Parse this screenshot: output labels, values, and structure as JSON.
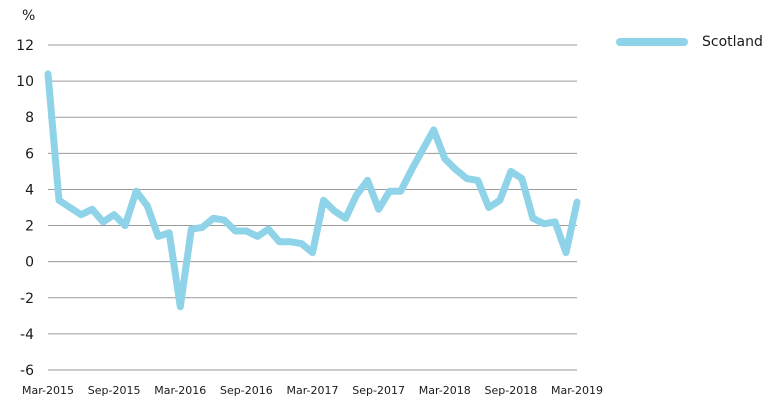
{
  "chart_data": {
    "type": "line",
    "unit": "%",
    "ylim": [
      -6,
      12
    ],
    "yticks": [
      "12",
      "10",
      "8",
      "6",
      "4",
      "2",
      "0",
      "-2",
      "-4",
      "-6"
    ],
    "ytick_values": [
      12,
      10,
      8,
      6,
      4,
      2,
      0,
      -2,
      -4,
      -6
    ],
    "xtick_labels": [
      "Mar-2015",
      "Sep-2015",
      "Mar-2016",
      "Sep-2016",
      "Mar-2017",
      "Sep-2017",
      "Mar-2018",
      "Sep-2018",
      "Mar-2019"
    ],
    "xtick_indices": [
      0,
      6,
      12,
      18,
      24,
      30,
      36,
      42,
      48
    ],
    "grid": true,
    "legend_position": "top-right",
    "series": [
      {
        "name": "Scotland",
        "color": "#8fd3e8",
        "values": [
          10.4,
          3.4,
          3.0,
          2.6,
          2.9,
          2.2,
          2.6,
          2.0,
          3.9,
          3.1,
          1.4,
          1.6,
          -2.5,
          1.8,
          1.9,
          2.4,
          2.3,
          1.7,
          1.7,
          1.4,
          1.8,
          1.1,
          1.1,
          1.0,
          0.5,
          3.4,
          2.8,
          2.4,
          3.7,
          4.5,
          2.9,
          3.9,
          3.9,
          5.1,
          6.2,
          7.3,
          5.7,
          5.1,
          4.6,
          4.5,
          3.0,
          3.4,
          5.0,
          4.6,
          2.4,
          2.1,
          2.2,
          0.5,
          3.3
        ]
      }
    ]
  }
}
